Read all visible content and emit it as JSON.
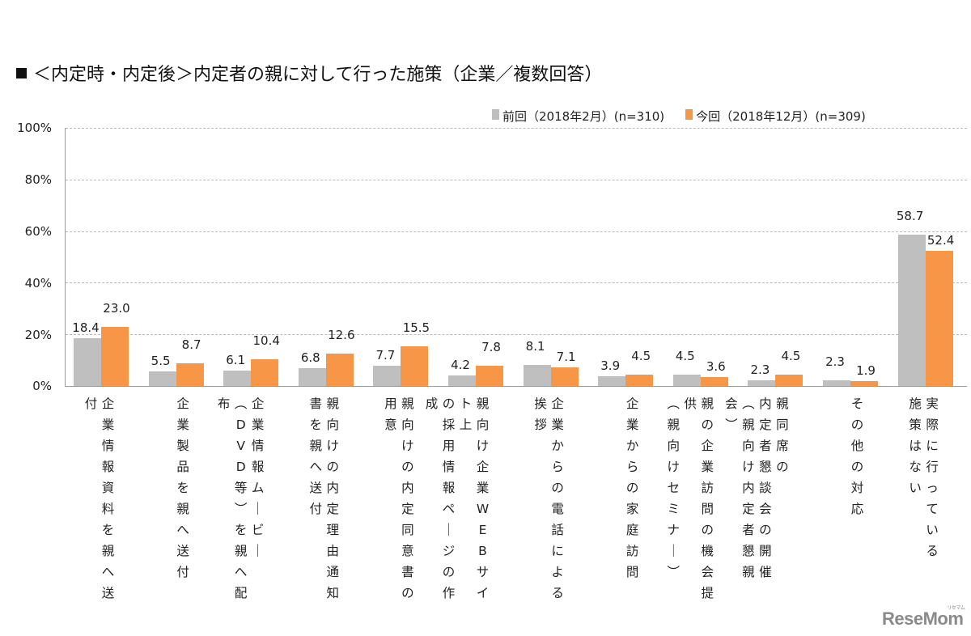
{
  "title": "＜内定時・内定後＞内定者の親に対して行った施策（企業／複数回答）",
  "legend": [
    {
      "label": "前回（2018年2月）(n=310)",
      "color": "#bfbfbf"
    },
    {
      "label": "今回（2018年12月）(n=309)",
      "color": "#f79646"
    }
  ],
  "y_ticks": [
    "100%",
    "80%",
    "60%",
    "40%",
    "20%",
    "0%"
  ],
  "watermark": "ReseMom",
  "chart_data": {
    "type": "bar",
    "title": "＜内定時・内定後＞内定者の親に対して行った施策（企業／複数回答）",
    "xlabel": "",
    "ylabel": "",
    "ylim": [
      0,
      100
    ],
    "y_tick_labels": [
      "0%",
      "20%",
      "40%",
      "60%",
      "80%",
      "100%"
    ],
    "grid": true,
    "legend_position": "top-right",
    "categories": [
      "企業情報資料を親へ送付",
      "企業製品を親へ送付",
      "企業情報ムービー（DVD等）を親へ配布",
      "親向けの内定理由通知書を親へ送付",
      "親向けの内定同意書の用意",
      "親向け企業WEBサイト上の採用情報ページの作成",
      "企業からの電話による挨拶",
      "企業からの家庭訪問",
      "親の企業訪問の機会提供（親向けセミナー）",
      "親同席の内定者懇談会の開催（親向け内定者懇親会）",
      "その他の対応",
      "実際に行っている施策はない"
    ],
    "category_columns": [
      [
        "企業情報資料を親へ送",
        "付"
      ],
      [
        "企業製品を親へ送付"
      ],
      [
        "企業情報ムービー",
        "（DVD等）を親へ配",
        "布"
      ],
      [
        "親向けの内定理由通知",
        "書を親へ送付"
      ],
      [
        "親向けの内定同意書の",
        "用意"
      ],
      [
        "親向け企業WEBサイ",
        "ト上",
        "の採用情報ページの作",
        "成"
      ],
      [
        "企業からの電話による",
        "挨拶"
      ],
      [
        "企業からの家庭訪問"
      ],
      [
        "親の企業訪問の機会提",
        "供",
        "（親向けセミナー）"
      ],
      [
        "親同席の",
        "内定者懇談会の開催",
        "（親向け内定者懇親",
        "会）"
      ],
      [
        "その他の対応"
      ],
      [
        "実際に行っている",
        "施策はない"
      ]
    ],
    "series": [
      {
        "name": "前回（2018年2月）(n=310)",
        "color": "#bfbfbf",
        "values": [
          18.4,
          5.5,
          6.1,
          6.8,
          7.7,
          4.2,
          8.1,
          3.9,
          4.5,
          2.3,
          2.3,
          58.7
        ]
      },
      {
        "name": "今回（2018年12月）(n=309)",
        "color": "#f79646",
        "values": [
          23.0,
          8.7,
          10.4,
          12.6,
          15.5,
          7.8,
          7.1,
          4.5,
          3.6,
          4.5,
          1.9,
          52.4
        ]
      }
    ]
  }
}
